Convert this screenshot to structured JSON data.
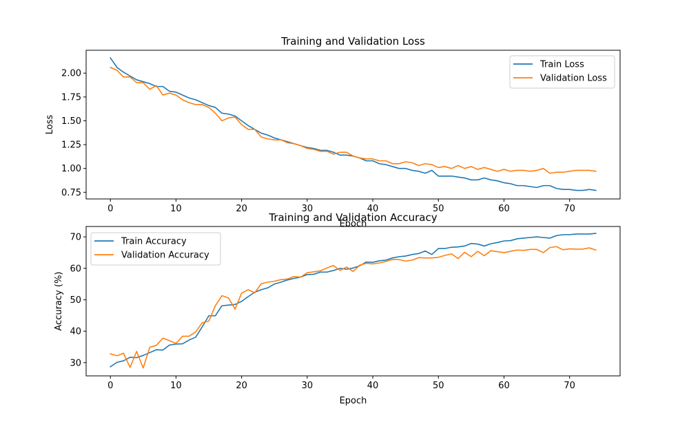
{
  "chart_data": [
    {
      "type": "line",
      "title": "Training and Validation Loss",
      "xlabel": "Epoch",
      "ylabel": "Loss",
      "xlim": [
        -3.7,
        77.7
      ],
      "ylim": [
        0.68,
        2.24
      ],
      "xticks": [
        0,
        10,
        20,
        30,
        40,
        50,
        60,
        70
      ],
      "yticks": [
        0.75,
        1.0,
        1.25,
        1.5,
        1.75,
        2.0
      ],
      "ytick_labels": [
        "0.75",
        "1.00",
        "1.25",
        "1.50",
        "1.75",
        "2.00"
      ],
      "grid": false,
      "legend": "top-right",
      "series": [
        {
          "name": "Train Loss",
          "color": "#1f77b4",
          "values": [
            2.16,
            2.06,
            2.01,
            1.97,
            1.93,
            1.91,
            1.89,
            1.86,
            1.86,
            1.81,
            1.8,
            1.77,
            1.74,
            1.72,
            1.69,
            1.66,
            1.64,
            1.58,
            1.57,
            1.55,
            1.5,
            1.45,
            1.41,
            1.37,
            1.35,
            1.32,
            1.3,
            1.28,
            1.26,
            1.24,
            1.22,
            1.21,
            1.19,
            1.19,
            1.17,
            1.14,
            1.14,
            1.13,
            1.11,
            1.08,
            1.08,
            1.05,
            1.04,
            1.02,
            1.0,
            1.0,
            0.98,
            0.97,
            0.95,
            0.98,
            0.92,
            0.92,
            0.92,
            0.91,
            0.9,
            0.88,
            0.88,
            0.9,
            0.88,
            0.87,
            0.85,
            0.84,
            0.82,
            0.82,
            0.81,
            0.8,
            0.82,
            0.82,
            0.79,
            0.78,
            0.78,
            0.77,
            0.77,
            0.78,
            0.77
          ]
        },
        {
          "name": "Validation Loss",
          "color": "#ff7f0e",
          "values": [
            2.06,
            2.03,
            1.96,
            1.96,
            1.9,
            1.9,
            1.83,
            1.87,
            1.77,
            1.79,
            1.77,
            1.72,
            1.69,
            1.67,
            1.67,
            1.64,
            1.58,
            1.5,
            1.53,
            1.54,
            1.46,
            1.41,
            1.41,
            1.33,
            1.31,
            1.3,
            1.3,
            1.27,
            1.26,
            1.24,
            1.21,
            1.2,
            1.18,
            1.18,
            1.15,
            1.17,
            1.17,
            1.13,
            1.11,
            1.1,
            1.1,
            1.08,
            1.08,
            1.05,
            1.05,
            1.07,
            1.06,
            1.03,
            1.05,
            1.04,
            1.01,
            1.02,
            1.0,
            1.03,
            1.0,
            1.02,
            0.99,
            1.01,
            0.99,
            0.97,
            0.99,
            0.97,
            0.98,
            0.98,
            0.97,
            0.98,
            1.0,
            0.95,
            0.96,
            0.96,
            0.97,
            0.98,
            0.98,
            0.98,
            0.97
          ]
        }
      ]
    },
    {
      "type": "line",
      "title": "Training and Validation Accuracy",
      "xlabel": "Epoch",
      "ylabel": "Accuracy (%)",
      "xlim": [
        -3.7,
        77.7
      ],
      "ylim": [
        25.8,
        73.3
      ],
      "xticks": [
        0,
        10,
        20,
        30,
        40,
        50,
        60,
        70
      ],
      "yticks": [
        30,
        40,
        50,
        60,
        70
      ],
      "ytick_labels": [
        "30",
        "40",
        "50",
        "60",
        "70"
      ],
      "grid": false,
      "legend": "top-left",
      "series": [
        {
          "name": "Train Accuracy",
          "color": "#1f77b4",
          "values": [
            28.7,
            30.1,
            30.6,
            31.7,
            31.6,
            32.3,
            33.2,
            34.1,
            34.0,
            35.6,
            35.9,
            36.0,
            37.2,
            38.1,
            41.4,
            44.9,
            44.9,
            48.1,
            48.3,
            48.5,
            49.5,
            51.0,
            52.4,
            53.2,
            53.8,
            55.0,
            55.6,
            56.3,
            56.8,
            57.2,
            58.0,
            58.1,
            58.8,
            58.8,
            59.3,
            60.0,
            59.7,
            60.1,
            60.8,
            62.0,
            61.9,
            62.4,
            62.6,
            63.3,
            63.7,
            63.9,
            64.4,
            64.7,
            65.5,
            64.4,
            66.3,
            66.3,
            66.7,
            66.8,
            67.1,
            67.9,
            67.7,
            67.1,
            67.8,
            68.2,
            68.7,
            68.8,
            69.4,
            69.6,
            69.8,
            70.0,
            69.8,
            69.6,
            70.4,
            70.7,
            70.7,
            70.9,
            70.9,
            70.9,
            71.1
          ]
        },
        {
          "name": "Validation Accuracy",
          "color": "#ff7f0e",
          "values": [
            32.8,
            32.2,
            33.0,
            28.5,
            33.6,
            28.3,
            34.9,
            35.5,
            37.8,
            37.0,
            36.1,
            38.4,
            38.4,
            39.8,
            42.7,
            43.2,
            48.1,
            51.3,
            50.6,
            47.0,
            52.1,
            53.2,
            52.2,
            55.1,
            55.6,
            55.9,
            56.4,
            56.6,
            57.4,
            57.2,
            58.6,
            58.9,
            59.2,
            60.1,
            60.9,
            59.3,
            60.4,
            59.0,
            61.0,
            61.6,
            61.4,
            61.7,
            62.2,
            62.8,
            62.8,
            62.3,
            62.6,
            63.4,
            63.3,
            63.3,
            63.5,
            64.1,
            64.6,
            63.1,
            65.1,
            63.7,
            65.4,
            64.0,
            65.6,
            65.3,
            65.0,
            65.4,
            65.8,
            65.7,
            66.0,
            66.0,
            65.0,
            66.6,
            66.9,
            65.9,
            66.2,
            66.1,
            66.1,
            66.5,
            65.8
          ]
        }
      ]
    }
  ]
}
